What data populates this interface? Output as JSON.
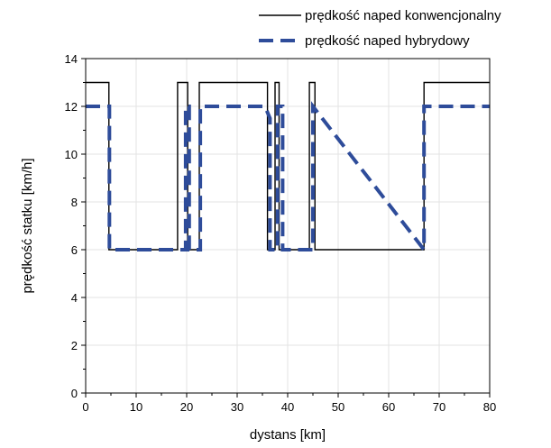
{
  "chart_data": {
    "type": "line",
    "xlabel": "dystans [km]",
    "ylabel": "prędkość statku [km/h]",
    "xlim": [
      0,
      80
    ],
    "ylim": [
      0,
      14
    ],
    "xticks": [
      0,
      10,
      20,
      30,
      40,
      50,
      60,
      70,
      80
    ],
    "yticks": [
      0,
      2,
      4,
      6,
      8,
      10,
      12,
      14
    ],
    "grid": true,
    "legend_position": "top-right",
    "series": [
      {
        "name": "prędkość naped konwencjonalny",
        "color": "#000000",
        "style": "solid",
        "x": [
          0,
          4.6,
          4.6,
          18.2,
          18.2,
          20.2,
          20.2,
          22.5,
          22.5,
          36.0,
          36.0,
          37.5,
          37.5,
          38.3,
          38.3,
          44.3,
          44.3,
          45.4,
          45.4,
          67.0,
          67.0,
          80
        ],
        "y": [
          13,
          13,
          6,
          6,
          13,
          13,
          6,
          6,
          13,
          13,
          6,
          6,
          13,
          13,
          6,
          6,
          13,
          13,
          6,
          6,
          13,
          13
        ]
      },
      {
        "name": "prędkość naped hybrydowy",
        "color": "#2E4C9A",
        "style": "dashed",
        "x": [
          0,
          4.7,
          4.7,
          19.8,
          19.8,
          20.5,
          20.5,
          22.7,
          22.7,
          35.5,
          36.5,
          36.5,
          38.0,
          38.0,
          39.0,
          39.0,
          45.0,
          45.0,
          67.0,
          67.0,
          80
        ],
        "y": [
          12,
          12,
          6,
          6,
          12,
          12,
          6,
          6,
          12,
          12,
          11.5,
          6,
          6,
          12,
          12,
          6,
          6,
          12,
          6,
          12,
          12
        ]
      }
    ]
  }
}
